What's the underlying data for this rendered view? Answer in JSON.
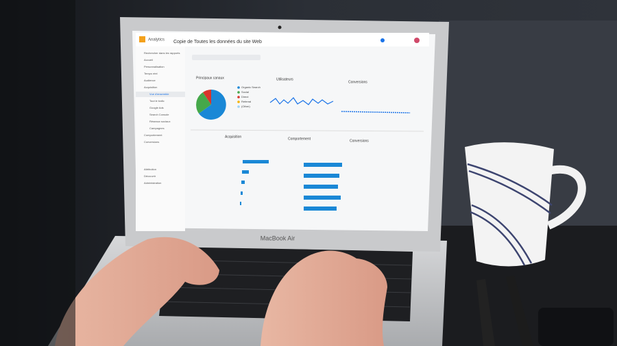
{
  "laptop": {
    "model": "MacBook Air"
  },
  "screen": {
    "app": "Analytics",
    "report_title": "Copie de Toutes les données du site Web",
    "sidebar": [
      "Rechercher dans les rapports",
      "Accueil",
      "Personnalisation",
      "Temps réel",
      "Audience",
      "Acquisition",
      "Vue d'ensemble",
      "Tout le trafic",
      "Google Ads",
      "Search Console",
      "Réseaux sociaux",
      "Campagnes",
      "Comportement",
      "Conversions",
      "Attribution",
      "Découvrir",
      "Administration"
    ],
    "cards": {
      "channels": "Principaux canaux",
      "users": "Utilisateurs",
      "conversions": "Conversions",
      "acquisition": "Acquisition",
      "behavior": "Comportement",
      "conversions_table": "Conversions"
    },
    "legend": [
      "Organic Search",
      "Social",
      "Direct",
      "Referral",
      "(Other)"
    ]
  }
}
